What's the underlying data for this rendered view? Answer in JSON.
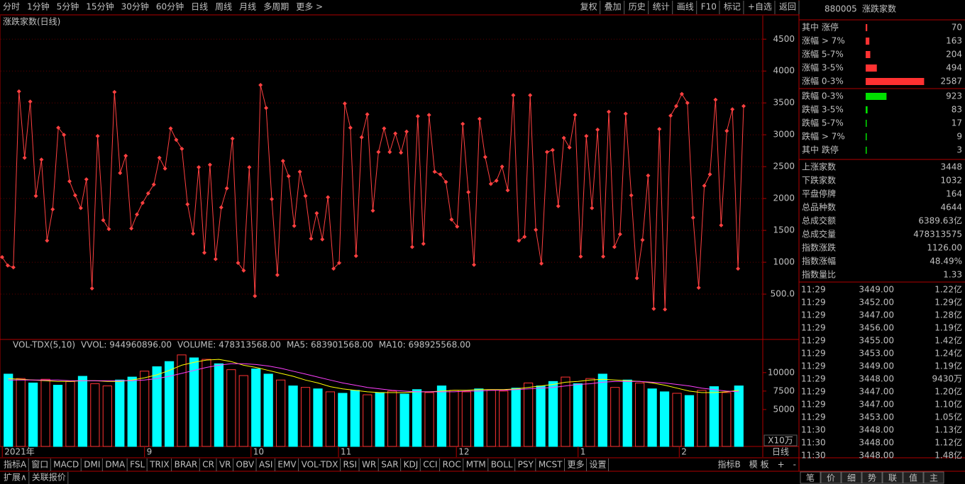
{
  "toolbar": {
    "left": [
      "分时",
      "1分钟",
      "5分钟",
      "15分钟",
      "30分钟",
      "60分钟",
      "日线",
      "周线",
      "月线",
      "多周期",
      "更多 >"
    ],
    "active_index": 6,
    "right": [
      "复权",
      "叠加",
      "历史",
      "统计",
      "画线",
      "F10",
      "标记",
      "+自选",
      "返回"
    ]
  },
  "chart_data": [
    {
      "type": "line",
      "title": "涨跌家数(日线)",
      "color": "#ff4040",
      "grid": true,
      "ylim": [
        -200,
        4870
      ],
      "yticks": [
        {
          "value": 500,
          "label": "500.0"
        },
        1000,
        1500,
        2000,
        2500,
        3000,
        3500,
        4000,
        4500
      ],
      "values": [
        1080,
        950,
        920,
        3680,
        2640,
        3520,
        2040,
        2610,
        1340,
        1830,
        3110,
        3000,
        2270,
        2050,
        1850,
        2300,
        590,
        2980,
        1660,
        1520,
        3670,
        2400,
        2670,
        1530,
        1750,
        1930,
        2080,
        2220,
        2640,
        2470,
        3100,
        2920,
        2780,
        1910,
        1450,
        2490,
        1150,
        2530,
        1050,
        1860,
        2160,
        2940,
        990,
        870,
        2490,
        470,
        3780,
        3420,
        1990,
        800,
        2590,
        2350,
        1570,
        2420,
        2040,
        1370,
        1770,
        1360,
        2020,
        900,
        990,
        3490,
        3110,
        1100,
        2960,
        3320,
        1810,
        2730,
        3100,
        2730,
        3020,
        2720,
        3050,
        1240,
        3290,
        1290,
        3310,
        2420,
        2380,
        2260,
        1670,
        1560,
        3170,
        2100,
        960,
        3250,
        2650,
        2230,
        2280,
        2500,
        2130,
        3620,
        1340,
        1400,
        3620,
        1510,
        980,
        2730,
        2760,
        1880,
        2950,
        2800,
        3310,
        1090,
        2980,
        1850,
        3080,
        1090,
        3360,
        1240,
        1440,
        3330,
        2050,
        750,
        1350,
        2360,
        270,
        3090,
        260,
        3300,
        3450,
        3640,
        3500,
        1700,
        600,
        2200,
        2380,
        3550,
        1580,
        3060,
        3400,
        900,
        3450
      ]
    },
    {
      "type": "bar",
      "title": "VOL-TDX(5,10)",
      "legend": [
        {
          "label": "VVOL: 944960896.00",
          "color": "#c0c0c0"
        },
        {
          "label": "VOLUME: 478313568.00",
          "color": "#ffff00"
        }
      ],
      "ylim": [
        0,
        14400
      ],
      "yticks": [
        5000,
        7500,
        10000
      ],
      "unit": "X10万",
      "hollow_color": "#ff3232",
      "values": [
        9800,
        9200,
        8600,
        9100,
        8300,
        8800,
        9500,
        8500,
        8200,
        9000,
        9400,
        10200,
        10800,
        11500,
        12400,
        12000,
        11800,
        11200,
        10400,
        9600,
        10500,
        9800,
        9000,
        8200,
        8000,
        7800,
        7400,
        7200,
        7600,
        7000,
        7300,
        7500,
        7100,
        7700,
        7300,
        8200,
        7600,
        7400,
        7800,
        7600,
        7500,
        7900,
        8600,
        8200,
        8800,
        9400,
        8500,
        9200,
        9800,
        8000,
        9000,
        8600,
        7800,
        7400,
        7200,
        6900,
        7600,
        8100,
        7300,
        8200
      ],
      "colors": [
        "#00ffff",
        "#ff3232",
        "#00ffff",
        "#ff3232",
        "#00ffff",
        "#ff3232",
        "#00ffff",
        "#ff3232",
        "#ff3232",
        "#00ffff",
        "#00ffff",
        "#ff3232",
        "#00ffff",
        "#00ffff",
        "#ff3232",
        "#00ffff",
        "#ff3232",
        "#00ffff",
        "#ff3232",
        "#ff3232",
        "#00ffff",
        "#00ffff",
        "#ff3232",
        "#00ffff",
        "#ff3232",
        "#00ffff",
        "#ff3232",
        "#00ffff",
        "#00ffff",
        "#ff3232",
        "#00ffff",
        "#ff3232",
        "#00ffff",
        "#00ffff",
        "#ff3232",
        "#00ffff",
        "#ff3232",
        "#ff3232",
        "#00ffff",
        "#ff3232",
        "#ff3232",
        "#00ffff",
        "#ff3232",
        "#00ffff",
        "#00ffff",
        "#ff3232",
        "#00ffff",
        "#ff3232",
        "#00ffff",
        "#ff3232",
        "#00ffff",
        "#ff3232",
        "#00ffff",
        "#00ffff",
        "#ff3232",
        "#00ffff",
        "#ff3232",
        "#00ffff",
        "#ff3232",
        "#00ffff"
      ],
      "series": [
        {
          "label": "MA5: 683901568.00",
          "color": "#ffff00",
          "values": [
            9200,
            9100,
            9000,
            8900,
            8800,
            8800,
            8900,
            8900,
            8800,
            8800,
            9000,
            9300,
            9700,
            10300,
            11000,
            11400,
            11700,
            11800,
            11500,
            11000,
            10700,
            10300,
            9900,
            9500,
            9000,
            8600,
            8100,
            7800,
            7600,
            7400,
            7300,
            7300,
            7300,
            7400,
            7400,
            7500,
            7600,
            7600,
            7700,
            7700,
            7700,
            7800,
            8000,
            8200,
            8400,
            8700,
            8800,
            9000,
            9100,
            9000,
            8900,
            8800,
            8600,
            8300,
            7900,
            7500,
            7300,
            7300,
            7400,
            7600
          ]
        },
        {
          "label": "MA10: 698925568.00",
          "color": "#ff40ff",
          "values": [
            9000,
            9000,
            9000,
            9000,
            9000,
            8900,
            8900,
            8900,
            8900,
            8900,
            8900,
            9000,
            9200,
            9500,
            9900,
            10300,
            10700,
            11000,
            11200,
            11200,
            11100,
            10900,
            10600,
            10200,
            9800,
            9400,
            9000,
            8600,
            8300,
            8000,
            7800,
            7600,
            7500,
            7400,
            7400,
            7400,
            7400,
            7500,
            7500,
            7600,
            7600,
            7700,
            7800,
            7900,
            8000,
            8200,
            8400,
            8500,
            8700,
            8800,
            8800,
            8800,
            8700,
            8600,
            8400,
            8200,
            7900,
            7700,
            7500,
            7400
          ]
        }
      ]
    }
  ],
  "date_axis": {
    "labels": [
      "2021年",
      "9",
      "10",
      "11",
      "12",
      "1",
      "2"
    ],
    "period": "日线"
  },
  "quote": {
    "code": "880005",
    "name": "涨跌家数",
    "xlim": [
      0,
      2700
    ],
    "distribution": [
      {
        "label": "其中 涨停",
        "value": 70,
        "color": "#ff3232"
      },
      {
        "label": "涨幅 > 7%",
        "value": 163,
        "color": "#ff3232"
      },
      {
        "label": "涨幅 5-7%",
        "value": 204,
        "color": "#ff3232"
      },
      {
        "label": "涨幅 3-5%",
        "value": 494,
        "color": "#ff3232"
      },
      {
        "label": "涨幅 0-3%",
        "value": 2587,
        "color": "#ff3232"
      },
      {
        "label": "跌幅 0-3%",
        "value": 923,
        "color": "#00e000"
      },
      {
        "label": "跌幅 3-5%",
        "value": 83,
        "color": "#00e000"
      },
      {
        "label": "跌幅 5-7%",
        "value": 17,
        "color": "#00e000"
      },
      {
        "label": "跌幅 > 7%",
        "value": 9,
        "color": "#00e000"
      },
      {
        "label": "其中 跌停",
        "value": 3,
        "color": "#00e000"
      }
    ],
    "stats": [
      {
        "label": "上涨家数",
        "value": "3448",
        "color": "#ff3232"
      },
      {
        "label": "下跌家数",
        "value": "1032",
        "color": "#00e000"
      },
      {
        "label": "平盘停牌",
        "value": "164",
        "color": "#e0e0e0"
      },
      {
        "label": "总品种数",
        "value": "4644",
        "color": "#e0e0e0"
      },
      {
        "label": "总成交额",
        "value": "6389.63亿",
        "color": "#ffff00"
      },
      {
        "label": "总成交量",
        "value": "478313575",
        "color": "#ffff00"
      },
      {
        "label": "指数涨跌",
        "value": "1126.00",
        "color": "#ff3232"
      },
      {
        "label": "指数涨幅",
        "value": "48.49%",
        "color": "#ff3232"
      },
      {
        "label": "指数量比",
        "value": "1.33",
        "color": "#ff3232"
      }
    ],
    "ticks": [
      [
        "11:29",
        "3449.00",
        "1.22亿"
      ],
      [
        "11:29",
        "3452.00",
        "1.29亿"
      ],
      [
        "11:29",
        "3447.00",
        "1.28亿"
      ],
      [
        "11:29",
        "3456.00",
        "1.19亿"
      ],
      [
        "11:29",
        "3455.00",
        "1.42亿"
      ],
      [
        "11:29",
        "3453.00",
        "1.24亿"
      ],
      [
        "11:29",
        "3449.00",
        "1.19亿"
      ],
      [
        "11:29",
        "3448.00",
        "9430万"
      ],
      [
        "11:29",
        "3447.00",
        "1.20亿"
      ],
      [
        "11:29",
        "3447.00",
        "1.10亿"
      ],
      [
        "11:29",
        "3453.00",
        "1.05亿"
      ],
      [
        "11:30",
        "3448.00",
        "1.13亿"
      ],
      [
        "11:30",
        "3448.00",
        "1.12亿"
      ],
      [
        "11:30",
        "3448.00",
        "1.48亿"
      ]
    ],
    "tabs": [
      "笔",
      "价",
      "细",
      "势",
      "联",
      "值",
      "主"
    ]
  },
  "bottom": {
    "tabs": [
      "指标A",
      "窗口",
      "MACD",
      "DMI",
      "DMA",
      "FSL",
      "TRIX",
      "BRAR",
      "CR",
      "VR",
      "OBV",
      "ASI",
      "EMV",
      "VOL-TDX",
      "RSI",
      "WR",
      "SAR",
      "KDJ",
      "CCI",
      "ROC",
      "MTM",
      "BOLL",
      "PSY",
      "MCST",
      "更多",
      "设置"
    ],
    "active_index": 13,
    "right": [
      "指标B",
      "模 板",
      "+",
      "-"
    ],
    "status": [
      "扩展∧",
      "关联报价"
    ]
  }
}
